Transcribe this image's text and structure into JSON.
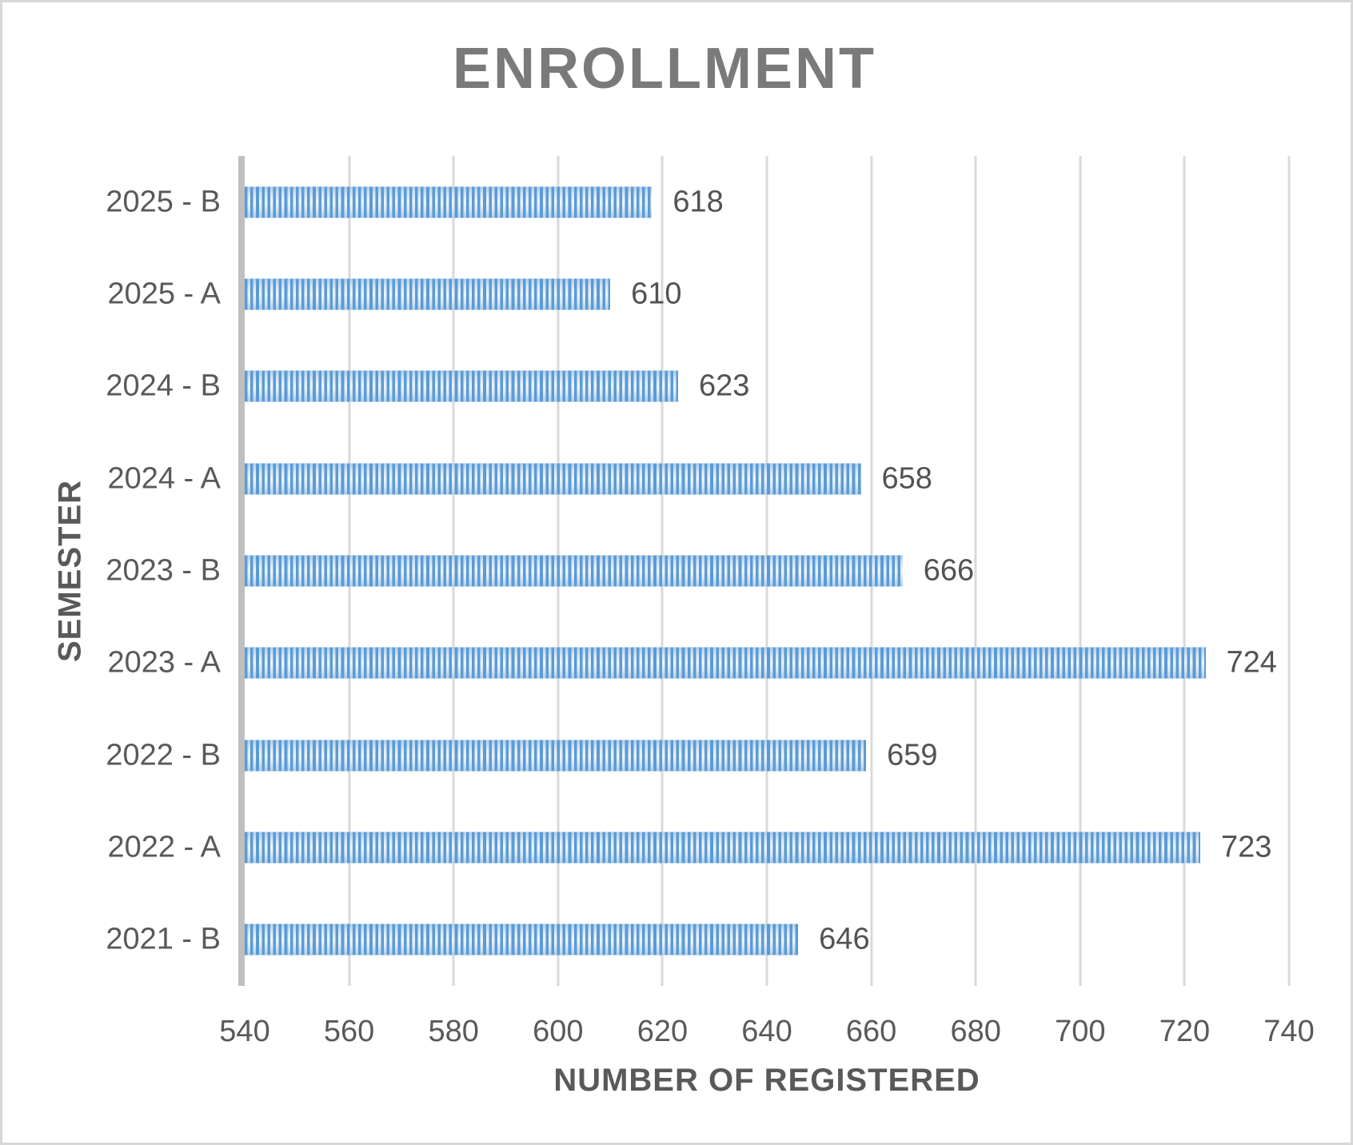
{
  "title": "ENROLLMENT",
  "colors": {
    "bar_stripe_dark": "#5b9bd5",
    "bar_stripe_light": "#dcebf7",
    "gridline": "#d9d9d9",
    "axis_line": "#bfbfbf",
    "title_text": "#7a7a7a",
    "label_text": "#595959",
    "page_border": "#d7d7d7"
  },
  "chart_data": {
    "type": "bar",
    "orientation": "horizontal",
    "title": "ENROLLMENT",
    "xlabel": "NUMBER OF REGISTERED",
    "ylabel": "SEMESTER",
    "categories": [
      "2025 - B",
      "2025 - A",
      "2024 - B",
      "2024 - A",
      "2023 - B",
      "2023 - A",
      "2022 - B",
      "2022 - A",
      "2021 - B"
    ],
    "values": [
      618,
      610,
      623,
      658,
      666,
      724,
      659,
      723,
      646
    ],
    "data_labels": [
      "618",
      "610",
      "623",
      "658",
      "666",
      "724",
      "659",
      "723",
      "646"
    ],
    "xlim": [
      540,
      740
    ],
    "xticks": [
      540,
      560,
      580,
      600,
      620,
      640,
      660,
      680,
      700,
      720,
      740
    ],
    "grid": true,
    "legend": "none",
    "bar_fill_pattern": "vertical-stripes"
  }
}
